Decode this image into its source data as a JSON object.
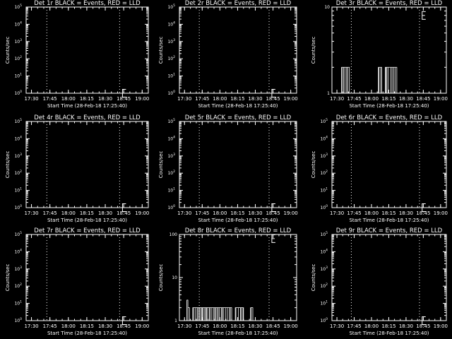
{
  "window": {
    "background": "#000000",
    "foreground": "#ffffff"
  },
  "chart_data": [
    {
      "panel": "1r",
      "type": "line",
      "title": "Det 1r BLACK = Events, RED = LLD",
      "xlabel": "Start Time (28-Feb-18 17:25:40)",
      "ylabel": "Counts/sec",
      "yscale": "log",
      "ylim_exponents": [
        0,
        5
      ],
      "ylabels": [
        "10",
        "10",
        "10",
        "10",
        "10",
        "10"
      ],
      "ysups": [
        "0",
        "1",
        "2",
        "3",
        "4",
        "5"
      ],
      "xlim": [
        "17:25:40",
        "19:05:00"
      ],
      "xticks": [
        "17:30",
        "17:45",
        "18:00",
        "18:15",
        "18:30",
        "18:45",
        "19:00"
      ],
      "dotted_lines": [
        "17:42:30",
        "18:41:40"
      ],
      "marker": {
        "time": "18:44:00",
        "level": "1"
      },
      "series": []
    },
    {
      "panel": "2r",
      "type": "line",
      "title": "Det 2r BLACK = Events, RED = LLD",
      "xlabel": "Start Time (28-Feb-18 17:25:40)",
      "ylabel": "Counts/sec",
      "yscale": "log",
      "ylim_exponents": [
        0,
        5
      ],
      "ylabels": [
        "10",
        "10",
        "10",
        "10",
        "10",
        "10"
      ],
      "ysups": [
        "0",
        "1",
        "2",
        "3",
        "4",
        "5"
      ],
      "xlim": [
        "17:25:40",
        "19:05:00"
      ],
      "xticks": [
        "17:30",
        "17:45",
        "18:00",
        "18:15",
        "18:30",
        "18:45",
        "19:00"
      ],
      "dotted_lines": [
        "17:42:30",
        "18:41:40"
      ],
      "marker": {
        "time": "18:44:00",
        "level": "1"
      },
      "series": []
    },
    {
      "panel": "3r",
      "type": "line",
      "title": "Det 3r BLACK = Events, RED = LLD",
      "xlabel": "Start Time (28-Feb-18 17:25:40)",
      "ylabel": "Counts/sec",
      "yscale": "log",
      "ylim_exponents": [
        0,
        1
      ],
      "ylabels": [
        "1",
        "10"
      ],
      "ysups": [
        "",
        ""
      ],
      "xlim": [
        "17:25:40",
        "19:05:00"
      ],
      "xticks": [
        "17:30",
        "17:45",
        "18:00",
        "18:15",
        "18:30",
        "18:45",
        "19:00"
      ],
      "dotted_lines": [
        "17:42:30",
        "18:41:40"
      ],
      "marker": {
        "time": "18:44:00",
        "level": "8"
      },
      "series": [
        {
          "style": "spikes",
          "base": 1,
          "peak": 2,
          "bursts": [
            [
              "17:34:00",
              "17:42:00"
            ],
            [
              "18:06:00",
              "18:09:00"
            ],
            [
              "18:12:00",
              "18:22:00"
            ]
          ]
        }
      ]
    },
    {
      "panel": "4r",
      "type": "line",
      "title": "Det 4r BLACK = Events, RED = LLD",
      "xlabel": "Start Time (28-Feb-18 17:25:40)",
      "ylabel": "Counts/sec",
      "yscale": "log",
      "ylim_exponents": [
        0,
        5
      ],
      "ylabels": [
        "10",
        "10",
        "10",
        "10",
        "10",
        "10"
      ],
      "ysups": [
        "0",
        "1",
        "2",
        "3",
        "4",
        "5"
      ],
      "xlim": [
        "17:25:40",
        "19:05:00"
      ],
      "xticks": [
        "17:30",
        "17:45",
        "18:00",
        "18:15",
        "18:30",
        "18:45",
        "19:00"
      ],
      "dotted_lines": [
        "17:42:30",
        "18:41:40"
      ],
      "marker": {
        "time": "18:44:00",
        "level": "1"
      },
      "series": []
    },
    {
      "panel": "5r",
      "type": "line",
      "title": "Det 5r BLACK = Events, RED = LLD",
      "xlabel": "Start Time (28-Feb-18 17:25:40)",
      "ylabel": "Counts/sec",
      "yscale": "log",
      "ylim_exponents": [
        0,
        5
      ],
      "ylabels": [
        "10",
        "10",
        "10",
        "10",
        "10",
        "10"
      ],
      "ysups": [
        "0",
        "1",
        "2",
        "3",
        "4",
        "5"
      ],
      "xlim": [
        "17:25:40",
        "19:05:00"
      ],
      "xticks": [
        "17:30",
        "17:45",
        "18:00",
        "18:15",
        "18:30",
        "18:45",
        "19:00"
      ],
      "dotted_lines": [
        "17:42:30",
        "18:41:40"
      ],
      "marker": {
        "time": "18:44:00",
        "level": "1"
      },
      "series": []
    },
    {
      "panel": "6r",
      "type": "line",
      "title": "Det 6r BLACK = Events, RED = LLD",
      "xlabel": "Start Time (28-Feb-18 17:25:40)",
      "ylabel": "Counts/sec",
      "yscale": "log",
      "ylim_exponents": [
        0,
        5
      ],
      "ylabels": [
        "10",
        "10",
        "10",
        "10",
        "10",
        "10"
      ],
      "ysups": [
        "0",
        "1",
        "2",
        "3",
        "4",
        "5"
      ],
      "xlim": [
        "17:25:40",
        "19:05:00"
      ],
      "xticks": [
        "17:30",
        "17:45",
        "18:00",
        "18:15",
        "18:30",
        "18:45",
        "19:00"
      ],
      "dotted_lines": [
        "17:42:30",
        "18:41:40"
      ],
      "marker": {
        "time": "18:44:00",
        "level": "1"
      },
      "series": []
    },
    {
      "panel": "7r",
      "type": "line",
      "title": "Det 7r BLACK = Events, RED = LLD",
      "xlabel": "Start Time (28-Feb-18 17:25:40)",
      "ylabel": "Counts/sec",
      "yscale": "log",
      "ylim_exponents": [
        0,
        5
      ],
      "ylabels": [
        "10",
        "10",
        "10",
        "10",
        "10",
        "10"
      ],
      "ysups": [
        "0",
        "1",
        "2",
        "3",
        "4",
        "5"
      ],
      "xlim": [
        "17:25:40",
        "19:05:00"
      ],
      "xticks": [
        "17:30",
        "17:45",
        "18:00",
        "18:15",
        "18:30",
        "18:45",
        "19:00"
      ],
      "dotted_lines": [
        "17:42:30",
        "18:41:40"
      ],
      "marker": {
        "time": "18:44:00",
        "level": "1"
      },
      "series": []
    },
    {
      "panel": "8r",
      "type": "line",
      "title": "Det 8r BLACK = Events, RED = LLD",
      "xlabel": "Start Time (28-Feb-18 17:25:40)",
      "ylabel": "Counts/sec",
      "yscale": "log",
      "ylim_exponents": [
        0,
        2
      ],
      "ylabels": [
        "1",
        "10",
        "100"
      ],
      "ysups": [
        "",
        "",
        ""
      ],
      "xlim": [
        "17:25:40",
        "19:05:00"
      ],
      "xticks": [
        "17:30",
        "17:45",
        "18:00",
        "18:15",
        "18:30",
        "18:45",
        "19:00"
      ],
      "dotted_lines": [
        "17:42:30",
        "18:41:40"
      ],
      "marker": {
        "time": "18:44:00",
        "level": "80"
      },
      "series": [
        {
          "style": "spikes",
          "base": 1,
          "peak": 2,
          "peak_first": 3,
          "bursts": [
            [
              "17:32:00",
              "17:35:00"
            ],
            [
              "17:37:00",
              "18:10:00"
            ],
            [
              "18:13:00",
              "18:20:00"
            ],
            [
              "18:26:00",
              "18:28:00"
            ]
          ]
        }
      ]
    },
    {
      "panel": "9r",
      "type": "line",
      "title": "Det 9r BLACK = Events, RED = LLD",
      "xlabel": "Start Time (28-Feb-18 17:25:40)",
      "ylabel": "Counts/sec",
      "yscale": "log",
      "ylim_exponents": [
        0,
        5
      ],
      "ylabels": [
        "10",
        "10",
        "10",
        "10",
        "10",
        "10"
      ],
      "ysups": [
        "0",
        "1",
        "2",
        "3",
        "4",
        "5"
      ],
      "xlim": [
        "17:25:40",
        "19:05:00"
      ],
      "xticks": [
        "17:30",
        "17:45",
        "18:00",
        "18:15",
        "18:30",
        "18:45",
        "19:00"
      ],
      "dotted_lines": [
        "17:42:30",
        "18:41:40"
      ],
      "marker": {
        "time": "18:44:00",
        "level": "1"
      },
      "series": []
    }
  ]
}
